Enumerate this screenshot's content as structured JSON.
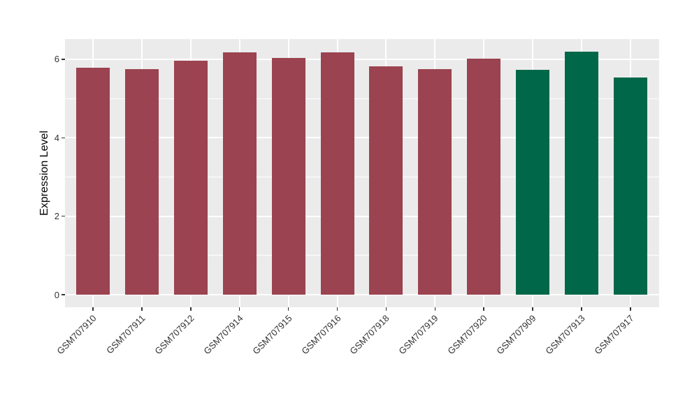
{
  "chart_data": {
    "type": "bar",
    "title": "",
    "xlabel": "",
    "ylabel": "Expression Level",
    "categories": [
      "GSM707910",
      "GSM707911",
      "GSM707912",
      "GSM707914",
      "GSM707915",
      "GSM707916",
      "GSM707918",
      "GSM707919",
      "GSM707920",
      "GSM707909",
      "GSM707913",
      "GSM707917"
    ],
    "values": [
      5.78,
      5.75,
      5.96,
      6.18,
      6.03,
      6.18,
      5.83,
      5.75,
      6.02,
      5.74,
      6.19,
      5.53
    ],
    "bar_colors": [
      "#9B4350",
      "#9B4350",
      "#9B4350",
      "#9B4350",
      "#9B4350",
      "#9B4350",
      "#9B4350",
      "#9B4350",
      "#9B4350",
      "#006849",
      "#006849",
      "#006849"
    ],
    "color_legend": {
      "group1_color": "#9B4350",
      "group2_color": "#006849"
    },
    "y_axis": {
      "ticks": [
        0,
        2,
        4,
        6
      ],
      "minor_ticks": [
        1,
        3,
        5
      ],
      "range_units": [
        -0.31,
        6.52
      ]
    },
    "grid": "on",
    "legend_position": "none",
    "style": {
      "panel_background": "#EBEBEB",
      "gridline_color": "#FFFFFF",
      "tick_text_color": "#333333",
      "axis_title_color": "#000000",
      "figure_background": "#FFFFFF"
    }
  }
}
